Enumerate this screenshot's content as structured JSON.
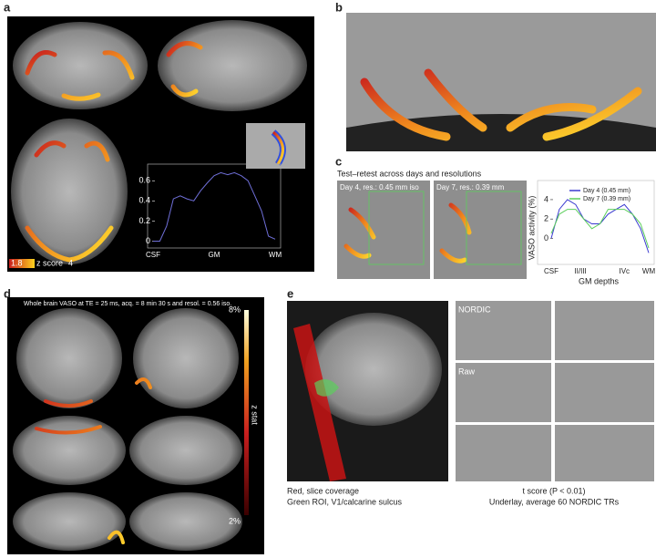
{
  "panels": {
    "a": {
      "label": "a",
      "colorbar": {
        "min": "1.8",
        "title": "z score",
        "max": "4"
      },
      "plot": {
        "type": "line",
        "x_labels": [
          "CSF",
          "GM",
          "WM"
        ],
        "values": [
          0,
          0,
          0.15,
          0.42,
          0.45,
          0.42,
          0.4,
          0.5,
          0.58,
          0.65,
          0.68,
          0.66,
          0.68,
          0.65,
          0.6,
          0.45,
          0.3,
          0.05,
          0.02
        ],
        "color": "#6f6fd8",
        "ylim": [
          -0.05,
          0.72
        ],
        "yticks": [
          0,
          0.2,
          0.4,
          0.6
        ]
      }
    },
    "b": {
      "label": "b"
    },
    "c": {
      "label": "c",
      "title": "Test–retest across days and resolutions",
      "images": [
        "Day 4, res.: 0.45 mm iso",
        "Day 7, res.: 0.39 mm"
      ],
      "plot": {
        "type": "line",
        "y_label": "VASO activity (%)",
        "x_label": "GM depths",
        "x_labels": [
          "CSF",
          "II/III",
          "IVc",
          "WM"
        ],
        "series": [
          {
            "name": "Day 4 (0.45 mm)",
            "color": "#3a3ad0",
            "values": [
              0,
              3,
              4,
              3.5,
              2,
              1.5,
              1.5,
              2.5,
              3,
              3.5,
              2.5,
              1,
              -1.5
            ]
          },
          {
            "name": "Day 7 (0.39 mm)",
            "color": "#5ccf5c",
            "values": [
              0.5,
              2.5,
              3,
              3,
              2,
              1,
              1.5,
              3,
              3,
              3,
              2.5,
              1.5,
              -1
            ]
          }
        ],
        "ylim": [
          -2.5,
          5.5
        ],
        "yticks": [
          0,
          2,
          4
        ]
      }
    },
    "d": {
      "label": "d",
      "title": "Whole brain VASO at TE = 25 ms, acq. = 8 min 30 s and resol. = 0.56 iso.",
      "colorbar": {
        "max": "8%",
        "title": "z stat",
        "min": "2%"
      }
    },
    "e": {
      "label": "e",
      "row_labels": [
        "NORDIC",
        "Raw"
      ],
      "captions_left": [
        "Red, slice coverage",
        "Green ROI, V1/calcarine sulcus"
      ],
      "captions_right": [
        "t score (P < 0.01)",
        "Underlay, average 60 NORDIC TRs"
      ]
    }
  }
}
